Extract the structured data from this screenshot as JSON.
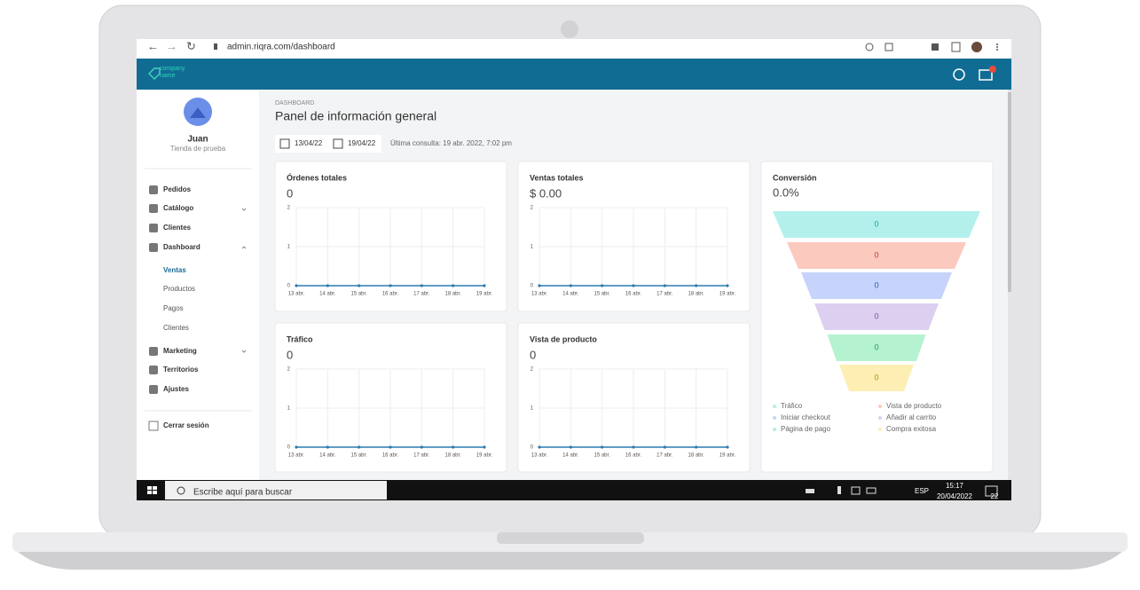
{
  "browser": {
    "url": "admin.riqra.com/dashboard"
  },
  "header": {
    "logo_top": "company",
    "logo_bottom": "name"
  },
  "sidebar": {
    "user": {
      "name": "Juan",
      "store": "Tienda de prueba"
    },
    "menu": [
      "Pedidos",
      "Catálogo",
      "Clientes",
      "Dashboard",
      "Ventas",
      "Productos",
      "Pagos",
      "Clientes",
      "Marketing",
      "Territorios",
      "Ajustes"
    ],
    "logout": "Cerrar sesión"
  },
  "page": {
    "breadcrumb": "DASHBOARD",
    "title": "Panel de información general",
    "date_from": "13/04/22",
    "date_to": "19/04/22",
    "last_query": "Última consulta: 19 abr. 2022, 7:02 pm"
  },
  "cards": [
    {
      "title": "Órdenes totales",
      "value": "0",
      "chart": {
        "type": "line",
        "x": [
          "13 abr.",
          "14 abr.",
          "15 abr.",
          "16 abr.",
          "17 abr.",
          "18 abr.",
          "19 abr."
        ],
        "values": [
          0,
          0,
          0,
          0,
          0,
          0,
          0
        ],
        "ylim": [
          0,
          2
        ],
        "yticks": [
          0,
          1,
          2
        ],
        "color": "#2b7bb0"
      }
    },
    {
      "title": "Ventas totales",
      "value": "$ 0.00",
      "chart": {
        "type": "line",
        "x": [
          "13 abr.",
          "14 abr.",
          "15 abr.",
          "16 abr.",
          "17 abr.",
          "18 abr.",
          "19 abr."
        ],
        "values": [
          0,
          0,
          0,
          0,
          0,
          0,
          0
        ],
        "ylim": [
          0,
          2
        ],
        "yticks": [
          0,
          1,
          2
        ],
        "color": "#2b7bb0"
      }
    },
    {
      "title": "Tráfico",
      "value": "0",
      "chart": {
        "type": "line",
        "x": [
          "13 abr.",
          "14 abr.",
          "15 abr.",
          "16 abr.",
          "17 abr.",
          "18 abr.",
          "19 abr."
        ],
        "values": [
          0,
          0,
          0,
          0,
          0,
          0,
          0
        ],
        "ylim": [
          0,
          2
        ],
        "yticks": [
          0,
          1,
          2
        ],
        "color": "#2b7bb0"
      }
    },
    {
      "title": "Vista de producto",
      "value": "0",
      "chart": {
        "type": "line",
        "x": [
          "13 abr.",
          "14 abr.",
          "15 abr.",
          "16 abr.",
          "17 abr.",
          "18 abr.",
          "19 abr."
        ],
        "values": [
          0,
          0,
          0,
          0,
          0,
          0,
          0
        ],
        "ylim": [
          0,
          2
        ],
        "yticks": [
          0,
          1,
          2
        ],
        "color": "#2b7bb0"
      }
    }
  ],
  "conversion": {
    "title": "Conversión",
    "value": "0.0%",
    "stages": [
      {
        "name": "Tráfico",
        "value": 0,
        "color": "#b3f0ec",
        "text_color": "#1f9c8f"
      },
      {
        "name": "Vista de producto",
        "value": 0,
        "color": "#fcc9bf",
        "text_color": "#c0392b"
      },
      {
        "name": "Iniciar checkout",
        "value": 0,
        "color": "#c6d4fb",
        "text_color": "#3355bb"
      },
      {
        "name": "Añadir al carrito",
        "value": 0,
        "color": "#dccff0",
        "text_color": "#7a4fb0"
      },
      {
        "name": "Página de pago",
        "value": 0,
        "color": "#b5f2cf",
        "text_color": "#1e9a55"
      },
      {
        "name": "Compra exitosa",
        "value": 0,
        "color": "#fdefb4",
        "text_color": "#b08a10"
      }
    ]
  },
  "taskbar": {
    "search": "Escribe aquí para buscar",
    "lang": "ESP",
    "time": "15:17",
    "date": "20/04/2022",
    "notifications": "22"
  }
}
